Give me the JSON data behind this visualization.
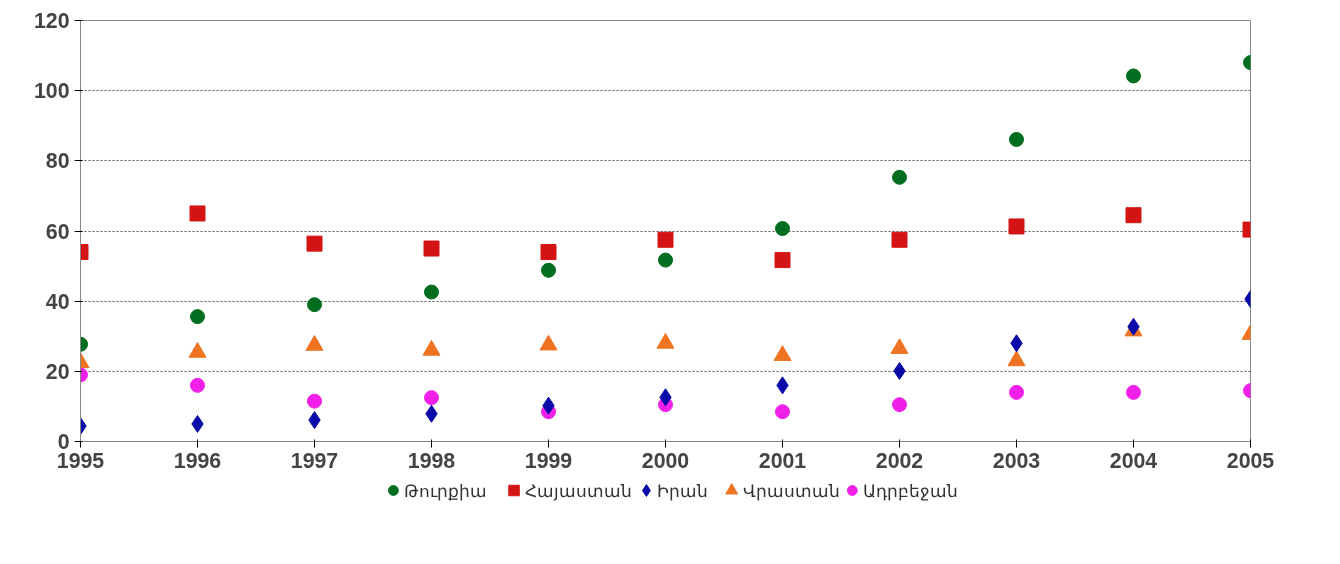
{
  "chart_data": {
    "type": "scatter",
    "x": [
      1995,
      1996,
      1997,
      1998,
      1999,
      2000,
      2001,
      2002,
      2003,
      2004,
      2005
    ],
    "xlim": [
      1995,
      2005
    ],
    "xticks": [
      1995,
      1996,
      1997,
      1998,
      1999,
      2000,
      2001,
      2002,
      2003,
      2004,
      2005
    ],
    "ylim": [
      0,
      120
    ],
    "yticks": [
      0,
      20,
      40,
      60,
      80,
      100,
      120
    ],
    "grid": "y",
    "legend": "bottom",
    "series": [
      {
        "name": "Թուրքիա",
        "color": "#006e1e",
        "marker": "circle",
        "values": [
          27.7,
          35.6,
          39,
          42.6,
          48.8,
          51.7,
          60.7,
          75.3,
          86.1,
          104.2,
          108
        ]
      },
      {
        "name": "Հայաստան",
        "color": "#d41414",
        "marker": "square",
        "values": [
          54,
          65,
          56.4,
          55,
          54,
          57.5,
          51.7,
          57.5,
          61.3,
          64.5,
          60.4
        ]
      },
      {
        "name": "Իրան",
        "color": "#0a0aa8",
        "marker": "diamond",
        "values": [
          4.4,
          5,
          6.1,
          7.9,
          10.2,
          12.6,
          16,
          20.1,
          28,
          32.7,
          40.6
        ]
      },
      {
        "name": "Վրաստան",
        "color": "#ee7422",
        "marker": "triangle",
        "values": [
          22.5,
          25.4,
          27.4,
          26,
          27.5,
          28,
          24.5,
          26.5,
          23,
          31.5,
          30.5
        ]
      },
      {
        "name": "Ադրբեջան",
        "color": "#f020e8",
        "marker": "circle",
        "values": [
          19,
          16,
          11.5,
          12.5,
          8.5,
          10.5,
          8.5,
          10.5,
          14,
          14,
          14.5
        ]
      }
    ]
  }
}
